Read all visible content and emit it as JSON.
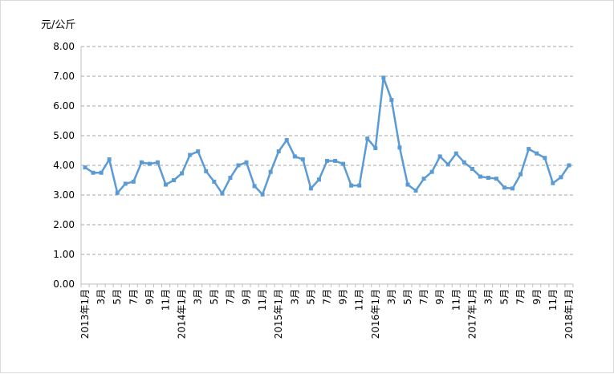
{
  "chart_data": {
    "type": "line",
    "unit_label": "元/公斤",
    "title": "",
    "xlabel": "",
    "ylabel": "",
    "ylim": [
      0,
      8
    ],
    "y_ticks": [
      "0.00",
      "1.00",
      "2.00",
      "3.00",
      "4.00",
      "5.00",
      "6.00",
      "7.00",
      "8.00"
    ],
    "grid": "horizontal-dashed",
    "legend": "none",
    "colors": {
      "series": "#5b9bd5",
      "grid": "#a6a6a6",
      "axis": "#bfbfbf"
    },
    "x_tick_labels": [
      "2013年1月",
      "3月",
      "5月",
      "7月",
      "9月",
      "11月",
      "2014年1月",
      "3月",
      "5月",
      "7月",
      "9月",
      "11月",
      "2015年1月",
      "3月",
      "5月",
      "7月",
      "9月",
      "11月",
      "2016年1月",
      "3月",
      "5月",
      "7月",
      "9月",
      "11月",
      "2017年1月",
      "3月",
      "5月",
      "7月",
      "9月",
      "11月",
      "2018年1月"
    ],
    "series": [
      {
        "values": [
          3.93,
          3.75,
          3.75,
          4.2,
          3.07,
          3.38,
          3.45,
          4.1,
          4.05,
          4.1,
          3.35,
          3.5,
          3.73,
          4.35,
          4.47,
          3.8,
          3.45,
          3.05,
          3.58,
          4.0,
          4.1,
          3.3,
          3.02,
          3.78,
          4.47,
          4.85,
          4.3,
          4.2,
          3.22,
          3.52,
          4.15,
          4.15,
          4.05,
          3.32,
          3.32,
          4.9,
          4.58,
          6.95,
          6.2,
          4.6,
          3.35,
          3.15,
          3.55,
          3.78,
          4.3,
          4.03,
          4.4,
          4.1,
          3.88,
          3.62,
          3.58,
          3.55,
          3.25,
          3.22,
          3.7,
          4.55,
          4.4,
          4.25,
          3.4,
          3.6,
          4.0
        ]
      }
    ]
  }
}
